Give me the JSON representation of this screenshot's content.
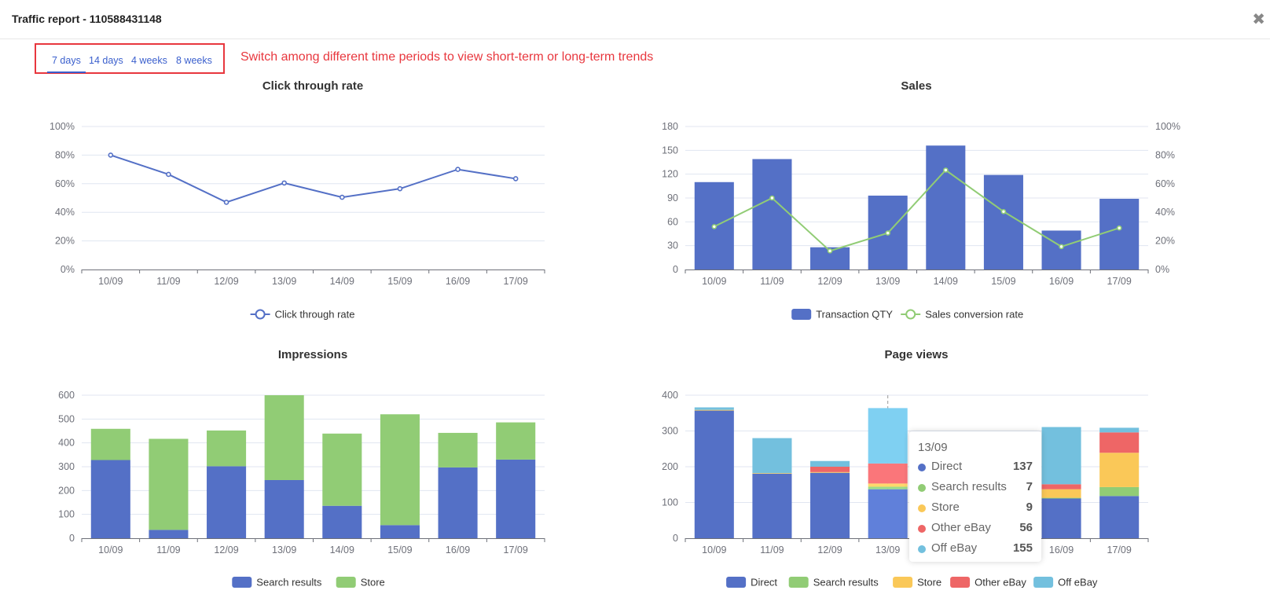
{
  "header": {
    "title": "Traffic report - 110588431148",
    "close_icon": "close-icon"
  },
  "tabs": [
    {
      "label": "7 days",
      "active": true
    },
    {
      "label": "14 days",
      "active": false
    },
    {
      "label": "4 weeks",
      "active": false
    },
    {
      "label": "8 weeks",
      "active": false
    }
  ],
  "annotation": "Switch among different time periods to view short-term or long-term trends",
  "colors": {
    "blue": "#5470c6",
    "green": "#91cc75",
    "yellow": "#fac858",
    "red": "#ee6666",
    "cyan": "#73c0de",
    "accent_red": "#e8373e",
    "link": "#3a5fcd"
  },
  "tooltip": {
    "title": "13/09",
    "rows": [
      {
        "label": "Direct",
        "value": "137",
        "color": "#5470c6"
      },
      {
        "label": "Search results",
        "value": "7",
        "color": "#91cc75"
      },
      {
        "label": "Store",
        "value": "9",
        "color": "#fac858"
      },
      {
        "label": "Other eBay",
        "value": "56",
        "color": "#ee6666"
      },
      {
        "label": "Off eBay",
        "value": "155",
        "color": "#73c0de"
      }
    ]
  },
  "chart_data": [
    {
      "id": "ctr",
      "type": "line",
      "title": "Click through rate",
      "categories": [
        "10/09",
        "11/09",
        "12/09",
        "13/09",
        "14/09",
        "15/09",
        "16/09",
        "17/09"
      ],
      "series": [
        {
          "name": "Click through rate",
          "values": [
            80,
            66.5,
            47,
            60.5,
            50.5,
            56.5,
            70,
            63.5
          ],
          "color": "#5470c6"
        }
      ],
      "yticks": [
        "0%",
        "20%",
        "40%",
        "60%",
        "80%",
        "100%"
      ],
      "ylim": [
        0,
        100
      ],
      "grid": true,
      "legend": "bottom-center"
    },
    {
      "id": "sales",
      "type": "bar",
      "title": "Sales",
      "categories": [
        "10/09",
        "11/09",
        "12/09",
        "13/09",
        "14/09",
        "15/09",
        "16/09",
        "17/09"
      ],
      "series": [
        {
          "name": "Transaction QTY",
          "type": "bar",
          "values": [
            110,
            139,
            28,
            93,
            156,
            119,
            49,
            89
          ],
          "color": "#5470c6",
          "axis": "left"
        },
        {
          "name": "Sales conversion rate",
          "type": "line",
          "values": [
            30,
            50,
            13,
            25.5,
            69.5,
            40.5,
            16,
            29
          ],
          "color": "#91cc75",
          "axis": "right"
        }
      ],
      "yticks": [
        "0",
        "30",
        "60",
        "90",
        "120",
        "150",
        "180"
      ],
      "ylim": [
        0,
        180
      ],
      "y2ticks": [
        "0%",
        "20%",
        "40%",
        "60%",
        "80%",
        "100%"
      ],
      "y2lim": [
        0,
        100
      ],
      "grid": true,
      "legend": "bottom-center"
    },
    {
      "id": "impressions",
      "type": "bar",
      "stacked": true,
      "title": "Impressions",
      "categories": [
        "10/09",
        "11/09",
        "12/09",
        "13/09",
        "14/09",
        "15/09",
        "16/09",
        "17/09"
      ],
      "series": [
        {
          "name": "Search results",
          "values": [
            328,
            35,
            302,
            244,
            136,
            55,
            297,
            330
          ],
          "color": "#5470c6"
        },
        {
          "name": "Store",
          "values": [
            131,
            382,
            150,
            356,
            303,
            465,
            145,
            156
          ],
          "color": "#91cc75"
        }
      ],
      "yticks": [
        "0",
        "100",
        "200",
        "300",
        "400",
        "500",
        "600"
      ],
      "ylim": [
        0,
        600
      ],
      "grid": true,
      "legend": "bottom-center"
    },
    {
      "id": "pageviews",
      "type": "bar",
      "stacked": true,
      "title": "Page views",
      "categories": [
        "10/09",
        "11/09",
        "12/09",
        "13/09",
        "14/09",
        "15/09",
        "16/09",
        "17/09"
      ],
      "series": [
        {
          "name": "Direct",
          "values": [
            357,
            181,
            183,
            137,
            null,
            null,
            111,
            118
          ],
          "color": "#5470c6"
        },
        {
          "name": "Search results",
          "values": [
            0,
            0,
            0,
            7,
            null,
            null,
            2,
            25
          ],
          "color": "#91cc75"
        },
        {
          "name": "Store",
          "values": [
            2,
            1,
            2,
            9,
            null,
            null,
            24,
            96
          ],
          "color": "#fac858"
        },
        {
          "name": "Other eBay",
          "values": [
            0,
            0,
            15,
            56,
            null,
            null,
            14,
            57
          ],
          "color": "#ee6666"
        },
        {
          "name": "Off eBay",
          "values": [
            7,
            98,
            16,
            155,
            null,
            null,
            160,
            13
          ],
          "color": "#73c0de"
        }
      ],
      "highlighted_category": "13/09",
      "yticks": [
        "0",
        "100",
        "200",
        "300",
        "400"
      ],
      "ylim": [
        0,
        400
      ],
      "grid": true,
      "legend": "bottom-center"
    }
  ]
}
